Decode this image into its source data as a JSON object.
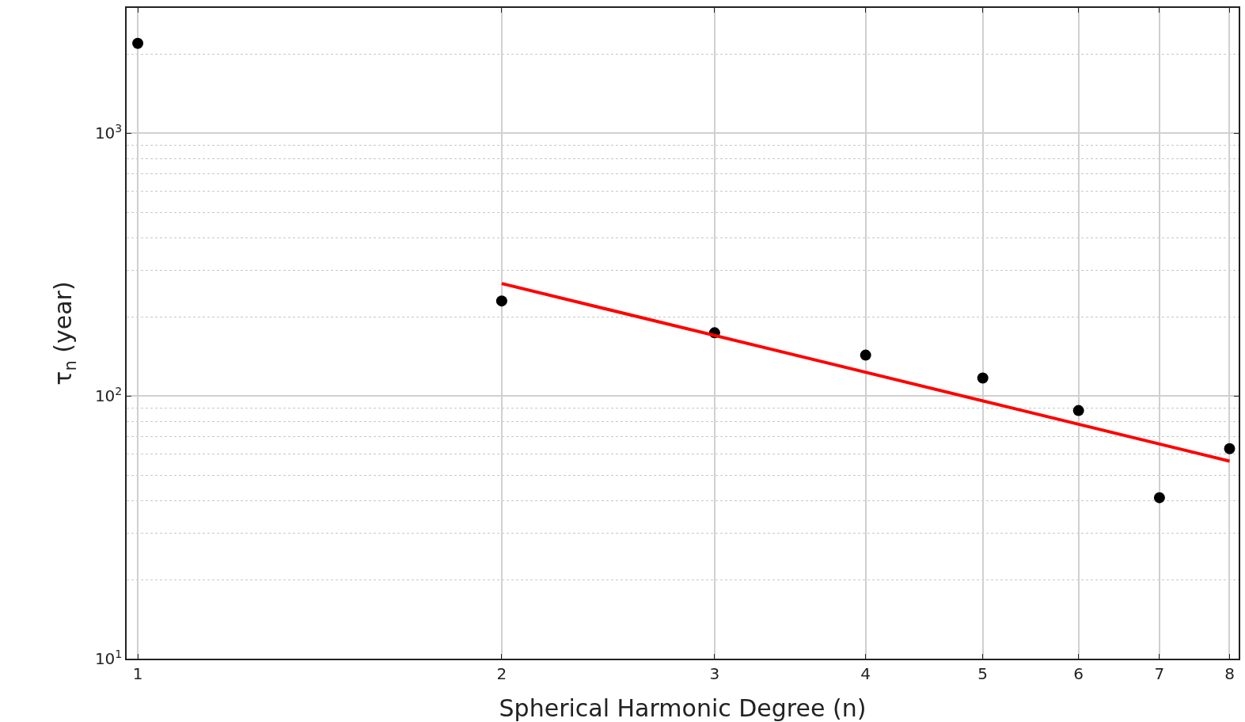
{
  "chart_data": {
    "type": "scatter",
    "xlabel": "Spherical Harmonic Degree (n)",
    "ylabel": "τ$_{n}$ (year)",
    "log": "xy",
    "grid": true,
    "marker": "circle",
    "x": [
      1,
      2,
      3,
      4,
      5,
      6,
      7,
      8
    ],
    "xlim": [
      0.979,
      8.14
    ],
    "xticks": [
      1,
      2,
      3,
      4,
      5,
      6,
      7,
      8
    ],
    "ylim": [
      10,
      3000
    ],
    "yticks": [
      {
        "value": 10,
        "label": "10$^{1}$"
      },
      {
        "value": 100,
        "label": "10$^{2}$"
      },
      {
        "value": 1000,
        "label": "10$^{3}$"
      }
    ],
    "series": [
      {
        "color": "#000000",
        "values": [
          2200,
          230,
          174,
          143,
          117,
          88,
          41,
          63
        ]
      },
      {
        "type": "line",
        "color": "#ff0000",
        "line_style": "solid",
        "marker": "none",
        "x": [
          2,
          8
        ],
        "values": [
          268,
          56.5
        ]
      }
    ]
  }
}
